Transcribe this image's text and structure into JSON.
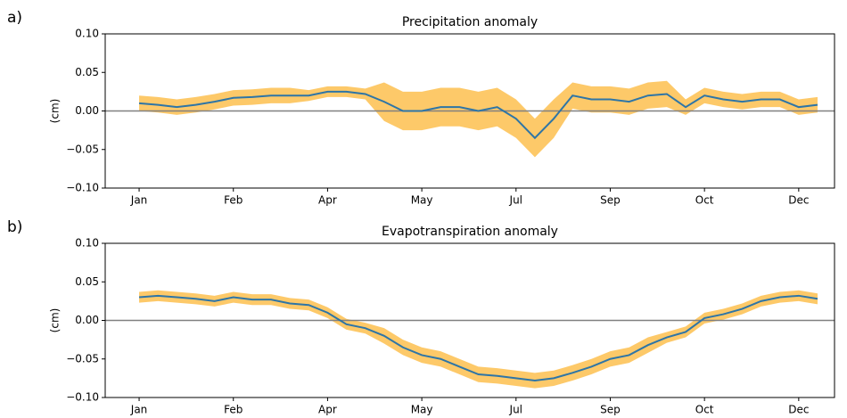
{
  "chart_data": [
    {
      "type": "line",
      "panel_label": "a)",
      "title": "Precipitation anomaly",
      "ylabel": "(cm)",
      "x": [
        0,
        10,
        20,
        30,
        40,
        50,
        60,
        70,
        80,
        90,
        100,
        110,
        120,
        130,
        140,
        150,
        160,
        170,
        180,
        190,
        200,
        210,
        220,
        230,
        240,
        250,
        260,
        270,
        280,
        290,
        300,
        310,
        320,
        330,
        340,
        350,
        360
      ],
      "xlim": [
        -18,
        369
      ],
      "xticks": [
        {
          "value": 0,
          "label": "Jan"
        },
        {
          "value": 50,
          "label": "Feb"
        },
        {
          "value": 100,
          "label": "Apr"
        },
        {
          "value": 150,
          "label": "May"
        },
        {
          "value": 200,
          "label": "Jul"
        },
        {
          "value": 250,
          "label": "Sep"
        },
        {
          "value": 300,
          "label": "Oct"
        },
        {
          "value": 350,
          "label": "Dec"
        }
      ],
      "ylim": [
        -0.1,
        0.1
      ],
      "yticks": [
        {
          "value": -0.1,
          "label": "−0.10"
        },
        {
          "value": -0.05,
          "label": "−0.05"
        },
        {
          "value": 0,
          "label": "0.00"
        },
        0.05,
        {
          "value": 0.1,
          "label": "0.10"
        }
      ],
      "hline": 0,
      "hline_color": "#808080",
      "series": {
        "color": "#2e75a6",
        "band_color": "#fdbf4f",
        "values": [
          0.01,
          0.008,
          0.005,
          0.008,
          0.012,
          0.017,
          0.018,
          0.02,
          0.02,
          0.02,
          0.025,
          0.025,
          0.022,
          0.012,
          0.0,
          0.0,
          0.005,
          0.005,
          0.0,
          0.005,
          -0.01,
          -0.035,
          -0.01,
          0.02,
          0.015,
          0.015,
          0.012,
          0.02,
          0.022,
          0.005,
          0.02,
          0.015,
          0.012,
          0.015,
          0.015,
          0.005,
          0.008
        ],
        "lower": [
          0.0,
          -0.002,
          -0.005,
          -0.002,
          0.002,
          0.007,
          0.008,
          0.01,
          0.01,
          0.013,
          0.018,
          0.018,
          0.015,
          -0.013,
          -0.025,
          -0.025,
          -0.02,
          -0.02,
          -0.025,
          -0.02,
          -0.035,
          -0.06,
          -0.035,
          0.003,
          -0.002,
          -0.002,
          -0.005,
          0.003,
          0.005,
          -0.005,
          0.01,
          0.005,
          0.002,
          0.005,
          0.005,
          -0.005,
          -0.002
        ],
        "upper": [
          0.02,
          0.018,
          0.015,
          0.018,
          0.022,
          0.027,
          0.028,
          0.03,
          0.03,
          0.027,
          0.032,
          0.032,
          0.029,
          0.037,
          0.025,
          0.025,
          0.03,
          0.03,
          0.025,
          0.03,
          0.015,
          -0.01,
          0.015,
          0.037,
          0.032,
          0.032,
          0.029,
          0.037,
          0.039,
          0.015,
          0.03,
          0.025,
          0.022,
          0.025,
          0.025,
          0.015,
          0.018
        ]
      }
    },
    {
      "type": "line",
      "panel_label": "b)",
      "title": "Evapotranspiration anomaly",
      "ylabel": "(cm)",
      "x": [
        0,
        10,
        20,
        30,
        40,
        50,
        60,
        70,
        80,
        90,
        100,
        110,
        120,
        130,
        140,
        150,
        160,
        170,
        180,
        190,
        200,
        210,
        220,
        230,
        240,
        250,
        260,
        270,
        280,
        290,
        300,
        310,
        320,
        330,
        340,
        350,
        360
      ],
      "xlim": [
        -18,
        369
      ],
      "xticks": [
        {
          "value": 0,
          "label": "Jan"
        },
        {
          "value": 50,
          "label": "Feb"
        },
        {
          "value": 100,
          "label": "Apr"
        },
        {
          "value": 150,
          "label": "May"
        },
        {
          "value": 200,
          "label": "Jul"
        },
        {
          "value": 250,
          "label": "Sep"
        },
        {
          "value": 300,
          "label": "Oct"
        },
        {
          "value": 350,
          "label": "Dec"
        }
      ],
      "ylim": [
        -0.1,
        0.1
      ],
      "yticks": [
        {
          "value": -0.1,
          "label": "−0.10"
        },
        {
          "value": -0.05,
          "label": "−0.05"
        },
        {
          "value": 0,
          "label": "0.00"
        },
        0.05,
        {
          "value": 0.1,
          "label": "0.10"
        }
      ],
      "hline": 0,
      "hline_color": "#808080",
      "series": {
        "color": "#2e75a6",
        "band_color": "#fdbf4f",
        "values": [
          0.03,
          0.032,
          0.03,
          0.028,
          0.025,
          0.03,
          0.027,
          0.027,
          0.022,
          0.02,
          0.01,
          -0.005,
          -0.01,
          -0.02,
          -0.035,
          -0.045,
          -0.05,
          -0.06,
          -0.07,
          -0.072,
          -0.075,
          -0.078,
          -0.075,
          -0.068,
          -0.06,
          -0.05,
          -0.045,
          -0.032,
          -0.022,
          -0.015,
          0.003,
          0.008,
          0.015,
          0.025,
          0.03,
          0.032,
          0.028
        ],
        "lower": [
          0.023,
          0.025,
          0.023,
          0.021,
          0.018,
          0.023,
          0.02,
          0.02,
          0.015,
          0.013,
          0.003,
          -0.012,
          -0.017,
          -0.03,
          -0.045,
          -0.055,
          -0.06,
          -0.07,
          -0.08,
          -0.082,
          -0.085,
          -0.088,
          -0.085,
          -0.078,
          -0.07,
          -0.06,
          -0.055,
          -0.042,
          -0.029,
          -0.022,
          -0.004,
          0.001,
          0.008,
          0.018,
          0.023,
          0.025,
          0.021
        ],
        "upper": [
          0.037,
          0.039,
          0.037,
          0.035,
          0.032,
          0.037,
          0.034,
          0.034,
          0.029,
          0.027,
          0.017,
          0.002,
          -0.003,
          -0.01,
          -0.025,
          -0.035,
          -0.04,
          -0.05,
          -0.06,
          -0.062,
          -0.065,
          -0.068,
          -0.065,
          -0.058,
          -0.05,
          -0.04,
          -0.035,
          -0.022,
          -0.015,
          -0.008,
          0.01,
          0.015,
          0.022,
          0.032,
          0.037,
          0.039,
          0.035
        ]
      }
    }
  ]
}
